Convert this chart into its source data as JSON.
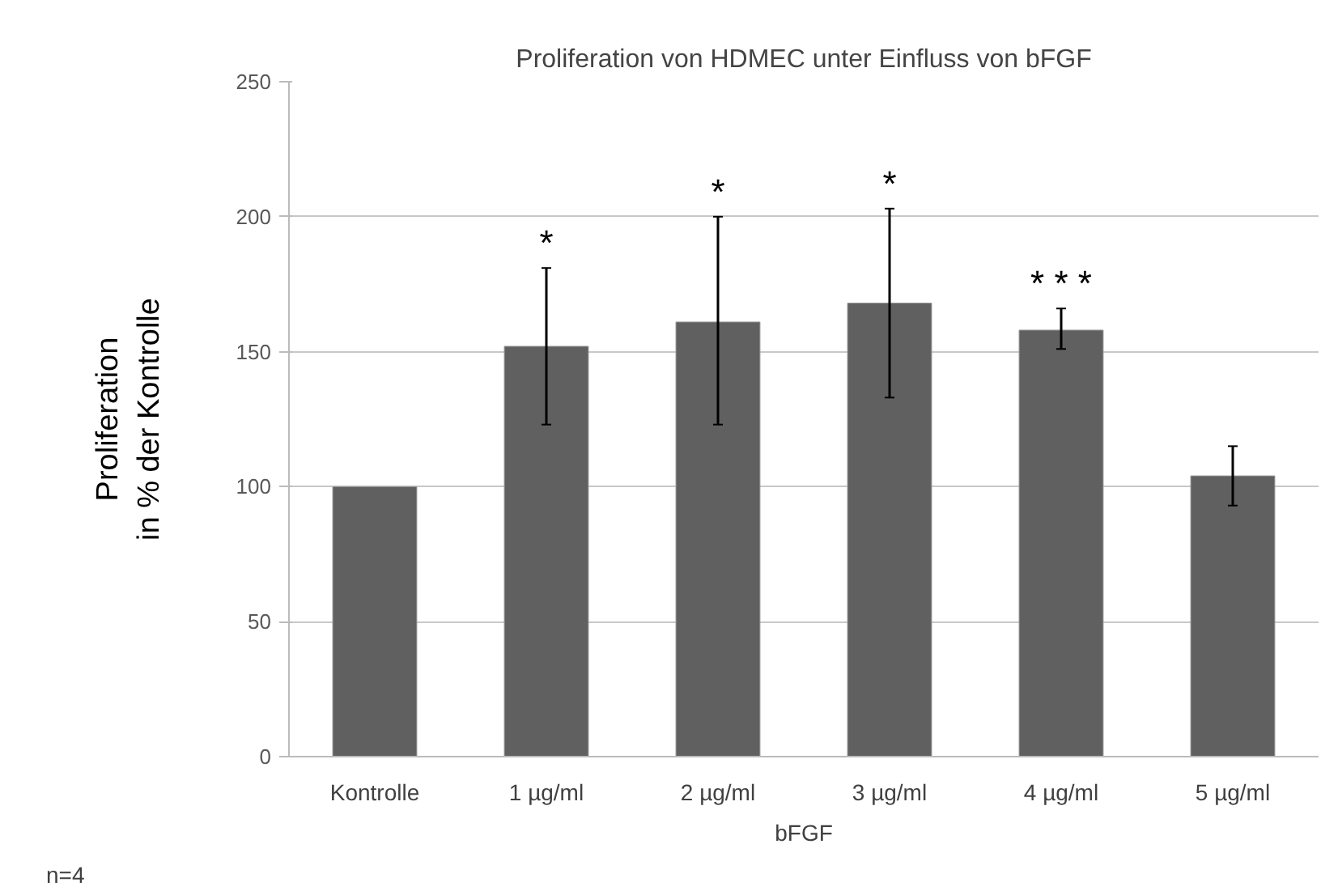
{
  "chart_data": {
    "type": "bar",
    "title": "Proliferation von HDMEC unter Einfluss von bFGF",
    "ylabel": "Proliferation\nin % der Kontrolle",
    "xlabel": "bFGF",
    "categories": [
      "Kontrolle",
      "1 µg/ml",
      "2 µg/ml",
      "3 µg/ml",
      "4 µg/ml",
      "5 µg/ml"
    ],
    "values": [
      100,
      152,
      161,
      168,
      158,
      104
    ],
    "errors": [
      null,
      [
        123,
        181
      ],
      [
        123,
        200
      ],
      [
        133,
        203
      ],
      [
        151,
        166
      ],
      [
        93,
        115
      ]
    ],
    "value_labels": [
      null,
      "*",
      "*",
      "*",
      "* * *",
      null
    ],
    "color": "#606060",
    "ylim": [
      0,
      250
    ],
    "yticks": [
      0,
      50,
      100,
      150,
      200,
      250
    ],
    "grid": "y",
    "annotations": [
      "n=4"
    ]
  }
}
